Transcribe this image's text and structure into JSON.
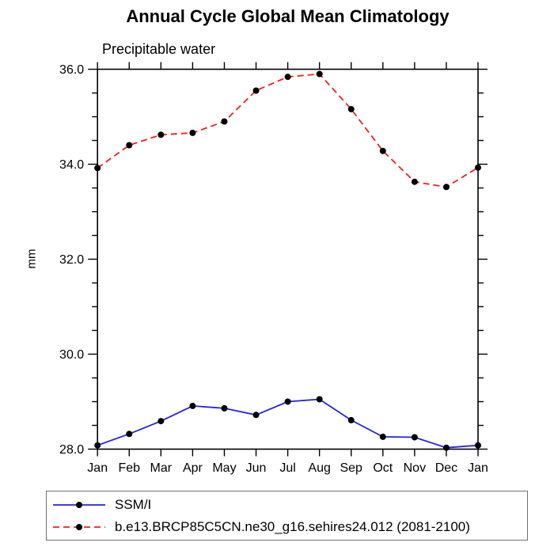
{
  "chart_data": {
    "type": "line",
    "title": "Annual Cycle Global Mean Climatology",
    "subtitle": "Precipitable water",
    "ylabel": "mm",
    "categories": [
      "Jan",
      "Feb",
      "Mar",
      "Apr",
      "May",
      "Jun",
      "Jul",
      "Aug",
      "Sep",
      "Oct",
      "Nov",
      "Dec",
      "Jan"
    ],
    "ylim": [
      28.0,
      36.0
    ],
    "ytick_major_values": [
      28.0,
      30.0,
      32.0,
      34.0,
      36.0
    ],
    "ytick_labels": [
      "28.0",
      "30.0",
      "32.0",
      "34.0",
      "36.0"
    ],
    "ytick_minor_step": 0.5,
    "grid": false,
    "legend_position": "bottom",
    "axis_color": "#000000",
    "marker": "filled-circle",
    "marker_color": "#000000",
    "series": [
      {
        "name": "SSM/I",
        "color": "#2323e0",
        "line_style": "solid",
        "values": [
          28.08,
          28.32,
          28.59,
          28.91,
          28.86,
          28.72,
          29.0,
          29.05,
          28.61,
          28.26,
          28.25,
          28.03,
          28.08
        ]
      },
      {
        "name": "b.e13.BRCP85C5CN.ne30_g16.sehires24.012 (2081-2100)",
        "color": "#ee2020",
        "line_style": "dashed",
        "values": [
          33.92,
          34.4,
          34.62,
          34.66,
          34.9,
          35.55,
          35.84,
          35.9,
          35.16,
          34.28,
          33.63,
          33.52,
          33.93
        ]
      }
    ]
  }
}
